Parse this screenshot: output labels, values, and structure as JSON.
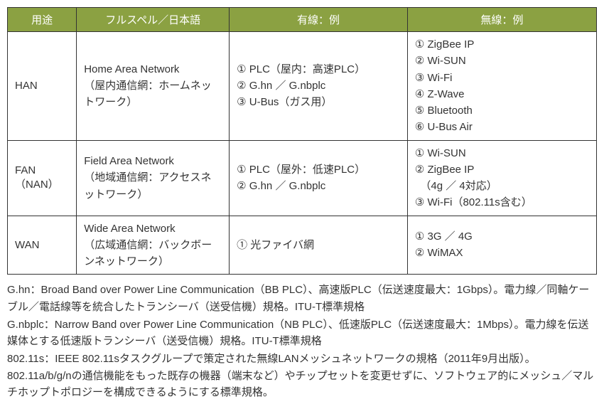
{
  "table": {
    "headers": [
      "用途",
      "フルスペル／日本語",
      "有線：例",
      "無線：例"
    ],
    "rows": [
      {
        "term": "HAN",
        "full": "Home Area Network\n（屋内通信網：ホームネットワーク）",
        "wired": "① PLC（屋内：高速PLC）\n② G.hn ／ G.nbplc\n③ U-Bus（ガス用）",
        "wireless": "① ZigBee IP\n② Wi-SUN\n③ Wi-Fi\n④ Z-Wave\n⑤ Bluetooth\n⑥ U-Bus Air"
      },
      {
        "term": "FAN\n（NAN）",
        "full": "Field Area Network\n（地域通信網：アクセスネットワーク）",
        "wired": "① PLC（屋外：低速PLC）\n② G.hn ／ G.nbplc",
        "wireless": "① Wi-SUN\n② ZigBee IP\n　（4g ／ 4対応）\n③ Wi-Fi（802.11s含む）"
      },
      {
        "term": "WAN",
        "full": "Wide Area Network\n（広域通信網：バックボーンネットワーク）",
        "wired": "① 光ファイバ網",
        "wireless": "① 3G ／ 4G\n② WiMAX"
      }
    ]
  },
  "notes": [
    "G.hn：Broad Band over Power Line Communication（BB PLC）、高速版PLC（伝送速度最大：1Gbps）。電力線／同軸ケーブル／電話線等を統合したトランシーバ（送受信機）規格。ITU-T標準規格",
    "G.nbplc：Narrow Band over Power Line Communication（NB PLC）、低速版PLC（伝送速度最大：1Mbps）。電力線を伝送媒体とする低速版トランシーバ（送受信機）規格。ITU-T標準規格",
    "802.11s：IEEE 802.11sタスクグループで策定された無線LANメッシュネットワークの規格（2011年9月出版）。802.11a/b/g/nの通信機能をもった既存の機器（端末など）やチップセットを変更せずに、ソフトウェア的にメッシュ／マルチホップトポロジーを構成できるようにする標準規格。"
  ]
}
